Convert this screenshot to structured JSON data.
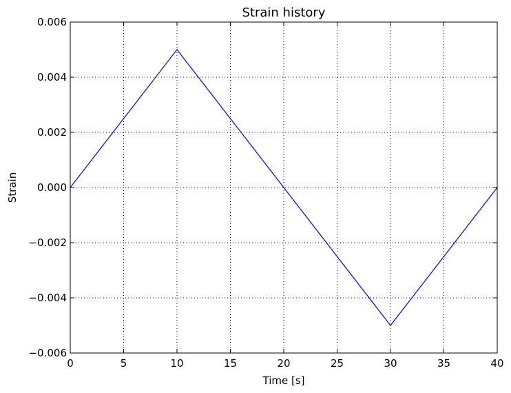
{
  "chart_data": {
    "type": "line",
    "title": "Strain history",
    "xlabel": "Time [s]",
    "ylabel": "Strain",
    "xlim": [
      0,
      40
    ],
    "ylim": [
      -0.006,
      0.006
    ],
    "x_ticks": [
      0,
      5,
      10,
      15,
      20,
      25,
      30,
      35,
      40
    ],
    "x_tick_labels": [
      "0",
      "5",
      "10",
      "15",
      "20",
      "25",
      "30",
      "35",
      "40"
    ],
    "y_ticks": [
      -0.006,
      -0.004,
      -0.002,
      0.0,
      0.002,
      0.004,
      0.006
    ],
    "y_tick_labels": [
      "−0.006",
      "−0.004",
      "−0.002",
      "0.000",
      "0.002",
      "0.004",
      "0.006"
    ],
    "grid": true,
    "series": [
      {
        "color": "#0000ff",
        "x": [
          0,
          10,
          30,
          40
        ],
        "y": [
          0.0,
          0.005,
          -0.005,
          0.0
        ]
      }
    ]
  }
}
